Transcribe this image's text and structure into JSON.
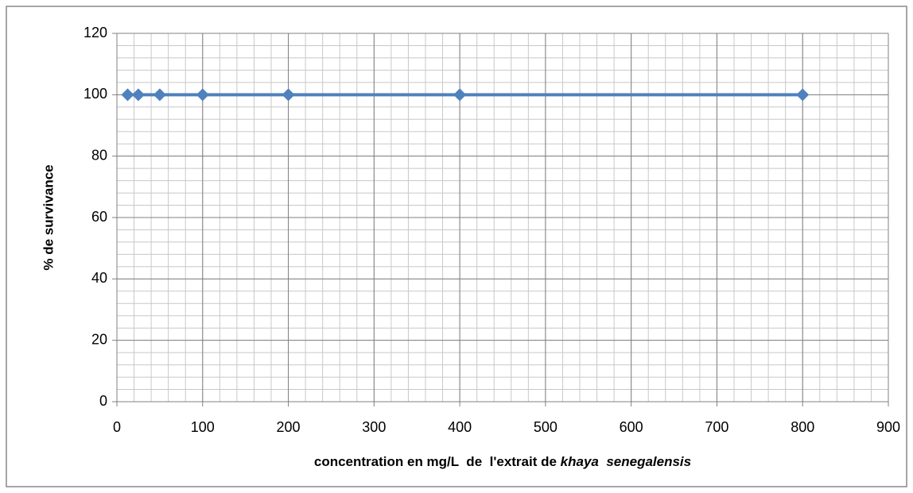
{
  "chart_data": {
    "type": "line",
    "xlabel": "concentration en mg/L  de  l'extrait de ",
    "xlabel_species": "khaya  senegalensis",
    "ylabel": "% de survivance",
    "x": [
      12.5,
      25,
      50,
      100,
      200,
      400,
      800
    ],
    "series": [
      {
        "name": "survivance",
        "color": "#4f81bd",
        "values": [
          100,
          100,
          100,
          100,
          100,
          100,
          100
        ]
      }
    ],
    "xlim": [
      0,
      900
    ],
    "xticks": [
      0,
      100,
      200,
      300,
      400,
      500,
      600,
      700,
      800,
      900
    ],
    "ylim": [
      0,
      120
    ],
    "yticks": [
      0,
      20,
      40,
      60,
      80,
      100,
      120
    ],
    "grid": true,
    "minor_grid": {
      "x_step": 20,
      "y_step": 4
    },
    "marker": "diamond"
  }
}
